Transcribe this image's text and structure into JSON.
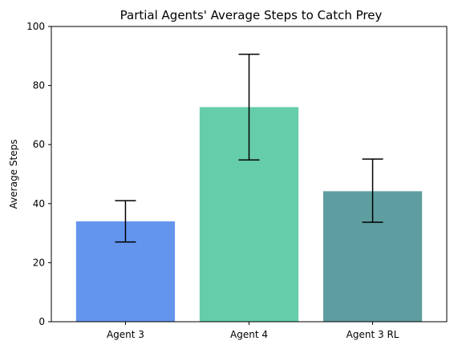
{
  "chart_data": {
    "type": "bar",
    "title": "Partial Agents' Average Steps to Catch Prey",
    "xlabel": "",
    "ylabel": "Average Steps",
    "categories": [
      "Agent 3",
      "Agent 4",
      "Agent 3 RL"
    ],
    "values": [
      34,
      72.7,
      44.2
    ],
    "error_low": [
      27,
      54.8,
      33.7
    ],
    "error_high": [
      41,
      90.6,
      55.1
    ],
    "colors": [
      "#6495ED",
      "#66CDAA",
      "#5F9EA0"
    ],
    "ylim": [
      0,
      100
    ],
    "yticks": [
      0,
      20,
      40,
      60,
      80,
      100
    ],
    "grid": false,
    "legend": "none"
  }
}
